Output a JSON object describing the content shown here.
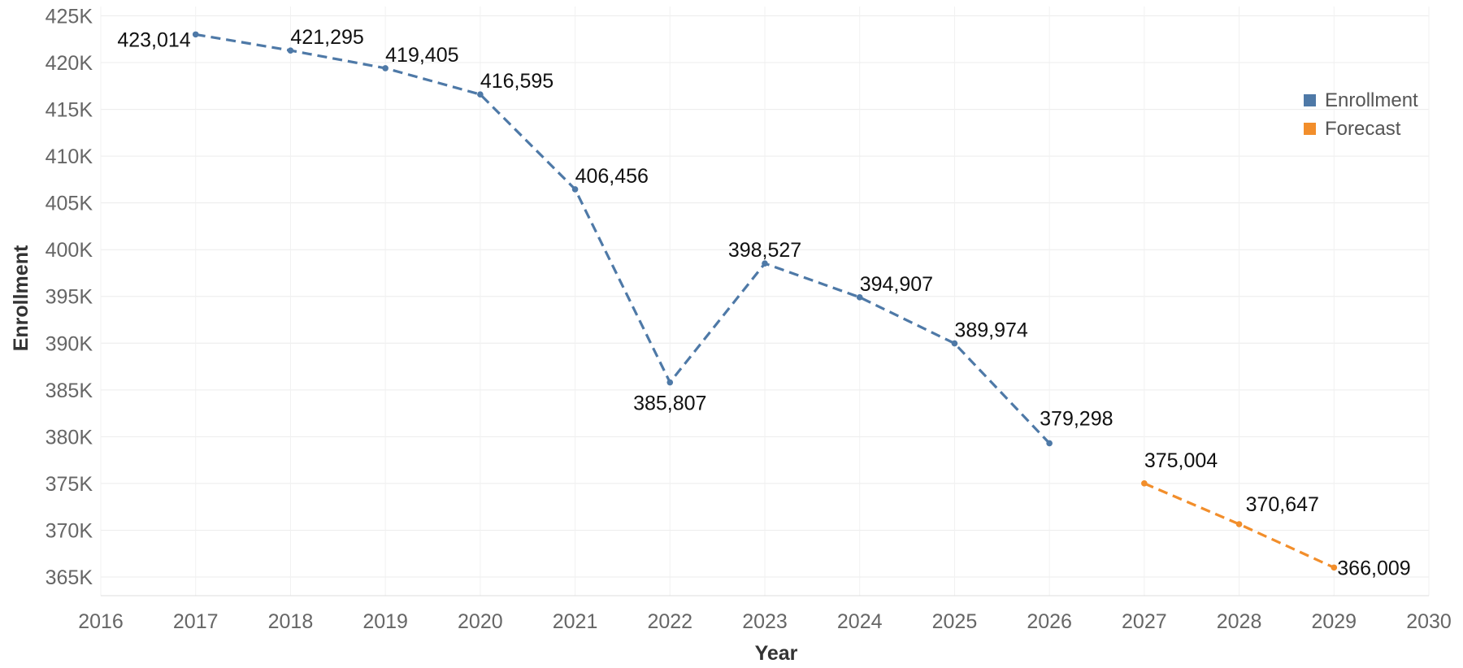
{
  "chart_data": {
    "type": "line",
    "xlabel": "Year",
    "ylabel": "Enrollment",
    "xlim": [
      2016,
      2030
    ],
    "ylim": [
      363000,
      426000
    ],
    "x_ticks": [
      2016,
      2017,
      2018,
      2019,
      2020,
      2021,
      2022,
      2023,
      2024,
      2025,
      2026,
      2027,
      2028,
      2029,
      2030
    ],
    "y_ticks": [
      365000,
      370000,
      375000,
      380000,
      385000,
      390000,
      395000,
      400000,
      405000,
      410000,
      415000,
      420000,
      425000
    ],
    "y_tick_labels": [
      "365K",
      "370K",
      "375K",
      "380K",
      "385K",
      "390K",
      "395K",
      "400K",
      "405K",
      "410K",
      "415K",
      "420K",
      "425K"
    ],
    "grid": true,
    "legend_position": "top-right",
    "series": [
      {
        "name": "Enrollment",
        "color": "#4e79a7",
        "line_style": "dashed",
        "x": [
          2017,
          2018,
          2019,
          2020,
          2021,
          2022,
          2023,
          2024,
          2025,
          2026
        ],
        "values": [
          423014,
          421295,
          419405,
          416595,
          406456,
          385807,
          398527,
          394907,
          389974,
          379298
        ],
        "labels": [
          "423,014",
          "421,295",
          "419,405",
          "416,595",
          "406,456",
          "385,807",
          "398,527",
          "394,907",
          "389,974",
          "379,298"
        ]
      },
      {
        "name": "Forecast",
        "color": "#f28e2b",
        "line_style": "dashed",
        "x": [
          2027,
          2028,
          2029
        ],
        "values": [
          375004,
          370647,
          366009
        ],
        "labels": [
          "375,004",
          "370,647",
          "366,009"
        ]
      }
    ]
  }
}
